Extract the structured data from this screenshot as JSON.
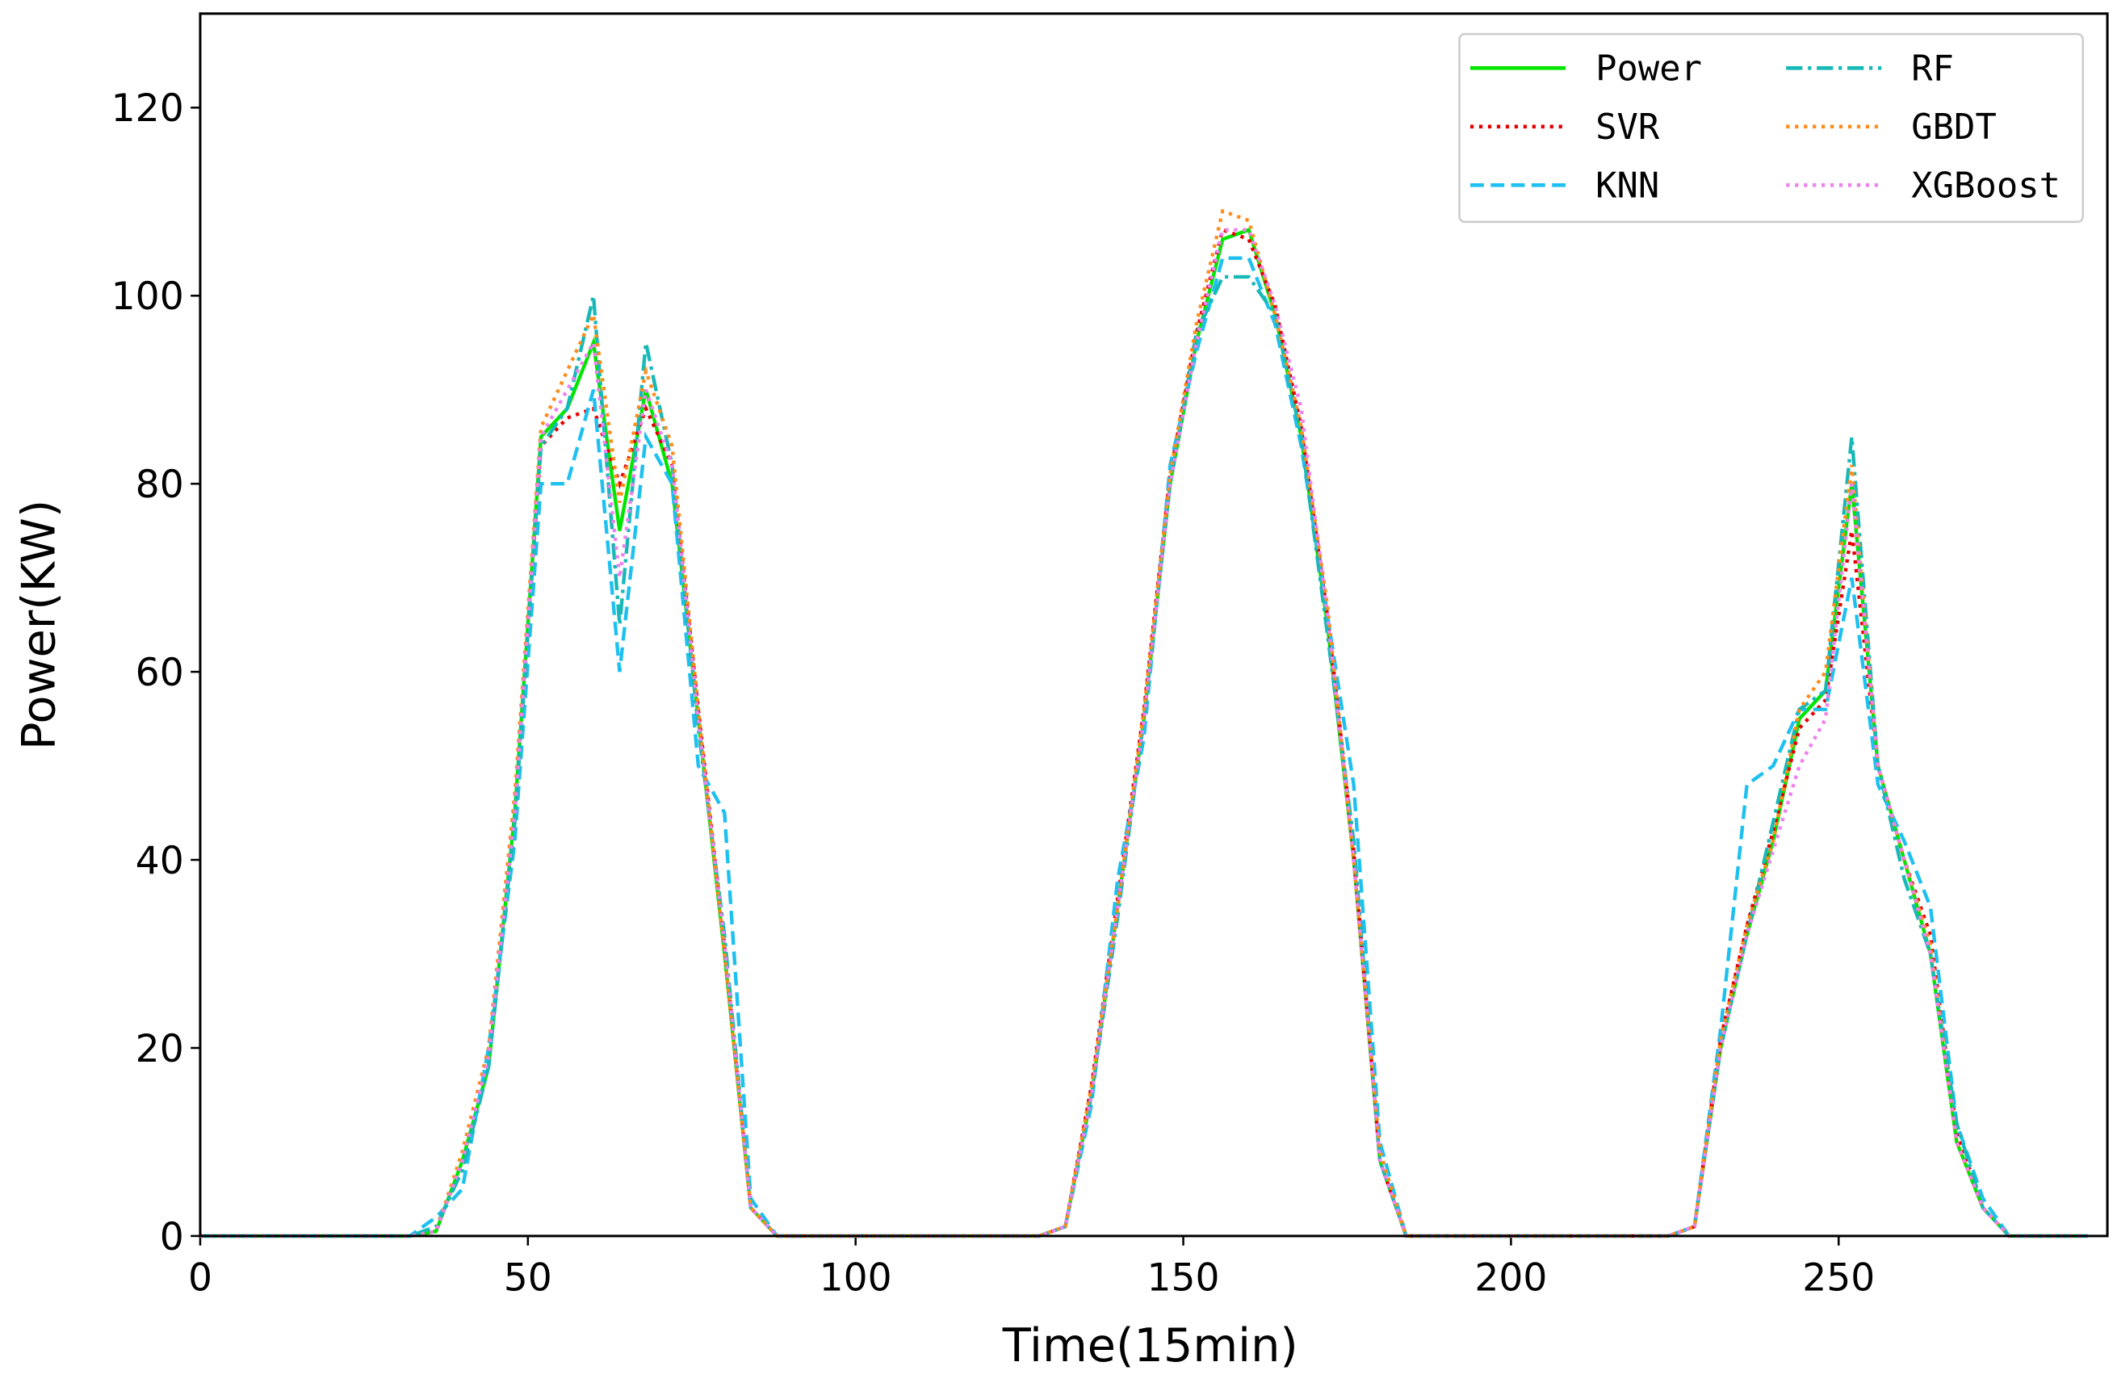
{
  "chart_data": {
    "type": "line",
    "xlabel": "Time(15min)",
    "ylabel": "Power(KW)",
    "x": [
      0,
      4,
      8,
      12,
      16,
      20,
      24,
      28,
      32,
      36,
      40,
      44,
      48,
      52,
      56,
      60,
      64,
      68,
      72,
      76,
      80,
      84,
      88,
      92,
      96,
      100,
      104,
      108,
      112,
      116,
      120,
      124,
      128,
      132,
      136,
      140,
      144,
      148,
      152,
      156,
      160,
      164,
      168,
      172,
      176,
      180,
      184,
      188,
      192,
      196,
      200,
      204,
      208,
      212,
      216,
      220,
      224,
      228,
      232,
      236,
      240,
      244,
      248,
      252,
      256,
      260,
      264,
      268,
      272,
      276,
      280,
      284,
      288
    ],
    "series": [
      {
        "name": "Power",
        "color": "#00e600",
        "linestyle": "solid",
        "values": [
          0,
          0,
          0,
          0,
          0,
          0,
          0,
          0,
          0,
          0.5,
          8,
          18,
          45,
          85,
          88,
          95,
          75,
          90,
          80,
          55,
          30,
          3,
          0,
          0,
          0,
          0,
          0,
          0,
          0,
          0,
          0,
          0,
          0,
          1,
          15,
          35,
          55,
          80,
          95,
          106,
          107,
          98,
          85,
          65,
          40,
          8,
          0,
          0,
          0,
          0,
          0,
          0,
          0,
          0,
          0,
          0,
          0,
          1,
          20,
          32,
          42,
          55,
          58,
          80,
          50,
          40,
          30,
          10,
          3,
          0,
          0,
          0,
          0
        ]
      },
      {
        "name": "SVR",
        "color": "#e60000",
        "linestyle": "dotted",
        "values": [
          0,
          0,
          0,
          0,
          0,
          0,
          0,
          0,
          0,
          0.5,
          8,
          19,
          46,
          84,
          87,
          88,
          80,
          88,
          82,
          56,
          31,
          3,
          0,
          0,
          0,
          0,
          0,
          0,
          0,
          0,
          0,
          0,
          0,
          1,
          16,
          36,
          56,
          81,
          96,
          107,
          106,
          99,
          86,
          66,
          41,
          8,
          0,
          0,
          0,
          0,
          0,
          0,
          0,
          0,
          0,
          0,
          0,
          1,
          21,
          33,
          43,
          54,
          57,
          75,
          50,
          40,
          32,
          11,
          3,
          0,
          0,
          0,
          0
        ]
      },
      {
        "name": "KNN",
        "color": "#1ec0f0",
        "linestyle": "dashed",
        "values": [
          0,
          0,
          0,
          0,
          0,
          0,
          0,
          0,
          0,
          2,
          5,
          20,
          42,
          80,
          80,
          90,
          60,
          85,
          80,
          50,
          45,
          4,
          0,
          0,
          0,
          0,
          0,
          0,
          0,
          0,
          0,
          0,
          0,
          1,
          14,
          38,
          53,
          82,
          94,
          104,
          104,
          97,
          84,
          66,
          48,
          10,
          0,
          0,
          0,
          0,
          0,
          0,
          0,
          0,
          0,
          0,
          0,
          1,
          22,
          48,
          50,
          56,
          56,
          70,
          48,
          42,
          35,
          12,
          4,
          0,
          0,
          0,
          0
        ]
      },
      {
        "name": "RF",
        "color": "#17b8b8",
        "linestyle": "dashdot",
        "values": [
          0,
          0,
          0,
          0,
          0,
          0,
          0,
          0,
          0,
          1,
          7,
          18,
          44,
          84,
          88,
          100,
          65,
          95,
          82,
          54,
          32,
          3,
          0,
          0,
          0,
          0,
          0,
          0,
          0,
          0,
          0,
          0,
          0,
          1,
          15,
          34,
          55,
          80,
          96,
          102,
          102,
          98,
          85,
          64,
          42,
          8,
          0,
          0,
          0,
          0,
          0,
          0,
          0,
          0,
          0,
          0,
          0,
          1,
          20,
          32,
          44,
          56,
          58,
          85,
          50,
          38,
          30,
          12,
          3,
          0,
          0,
          0,
          0
        ]
      },
      {
        "name": "GBDT",
        "color": "#ff8c1a",
        "linestyle": "dotted",
        "values": [
          0,
          0,
          0,
          0,
          0,
          0,
          0,
          0,
          0,
          0.5,
          9,
          20,
          47,
          86,
          92,
          98,
          78,
          92,
          84,
          56,
          30,
          3,
          0,
          0,
          0,
          0,
          0,
          0,
          0,
          0,
          0,
          0,
          0,
          1,
          16,
          35,
          56,
          81,
          97,
          109,
          108,
          98,
          86,
          67,
          40,
          9,
          0,
          0,
          0,
          0,
          0,
          0,
          0,
          0,
          0,
          0,
          0,
          1,
          21,
          33,
          42,
          56,
          60,
          82,
          50,
          40,
          31,
          10,
          3,
          0,
          0,
          0,
          0
        ]
      },
      {
        "name": "XGBoost",
        "color": "#ee82ee",
        "linestyle": "dotted",
        "values": [
          0,
          0,
          0,
          0,
          0,
          0,
          0,
          0,
          0,
          0.5,
          8,
          19,
          45,
          85,
          90,
          95,
          70,
          90,
          82,
          55,
          31,
          3,
          0,
          0,
          0,
          0,
          0,
          0,
          0,
          0,
          0,
          0,
          0,
          1,
          15,
          35,
          55,
          80,
          95,
          107,
          107,
          99,
          88,
          66,
          40,
          8,
          0,
          0,
          0,
          0,
          0,
          0,
          0,
          0,
          0,
          0,
          0,
          1,
          20,
          32,
          41,
          50,
          55,
          80,
          50,
          40,
          30,
          10,
          3,
          0,
          0,
          0,
          0
        ]
      }
    ],
    "xlim": [
      0,
      291
    ],
    "xticks": [
      0,
      50,
      100,
      150,
      200,
      250
    ],
    "ylim": [
      0,
      130
    ],
    "yticks": [
      0,
      20,
      40,
      60,
      80,
      100,
      120
    ],
    "grid": false,
    "legend": "upper right"
  }
}
